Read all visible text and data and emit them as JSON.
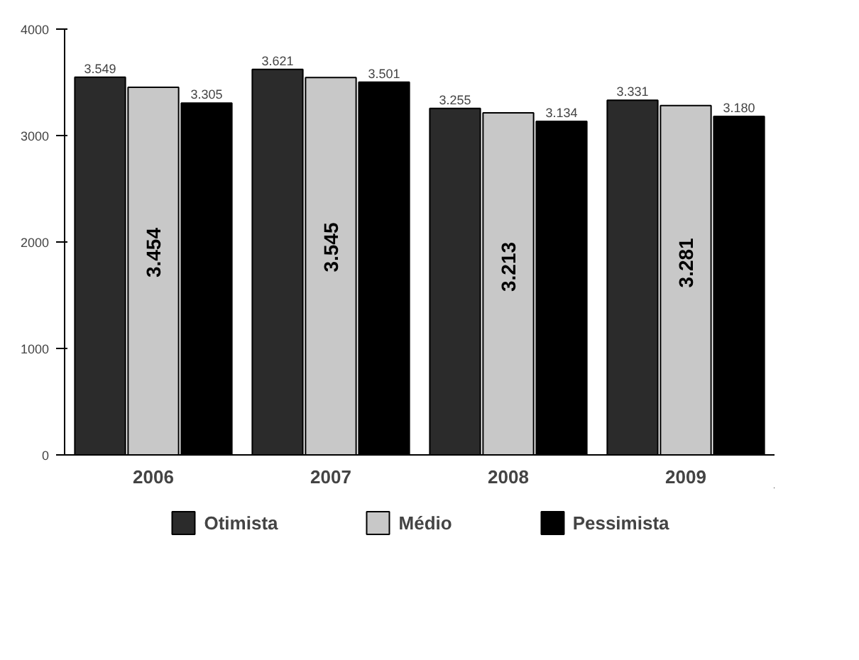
{
  "chart_data": {
    "type": "bar",
    "categories": [
      "2006",
      "2007",
      "2008",
      "2009"
    ],
    "series": [
      {
        "name": "Otimista",
        "color": "#2b2b2b",
        "values": [
          3549,
          3621,
          3255,
          3331
        ],
        "value_labels": [
          "3.549",
          "3.621",
          "3.255",
          "3.331"
        ]
      },
      {
        "name": "Médio",
        "color": "#c8c8c8",
        "values": [
          3454,
          3545,
          3213,
          3281
        ],
        "value_labels": [
          "3.454",
          "3.545",
          "3.213",
          "3.281"
        ]
      },
      {
        "name": "Pessimista",
        "color": "#000000",
        "values": [
          3305,
          3501,
          3134,
          3180
        ],
        "value_labels": [
          "3.305",
          "3.501",
          "3.134",
          "3.180"
        ]
      }
    ],
    "ylim": [
      0,
      4000
    ],
    "yticks": [
      0,
      1000,
      2000,
      3000,
      4000
    ],
    "grid": false,
    "legend": "bottom"
  }
}
